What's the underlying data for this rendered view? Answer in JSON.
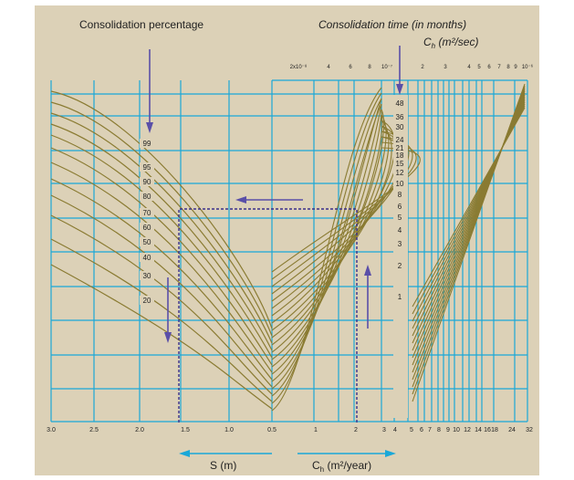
{
  "titles": {
    "consolidation_percentage": "Consolidation percentage",
    "consolidation_time": "Consolidation time (in months)",
    "ch_sec_label": "C",
    "ch_sec_sub": "h",
    "ch_sec_unit": " (m²/sec)"
  },
  "top_axis_labels": [
    "2x10⁻⁸",
    "4",
    "6",
    "8",
    "10⁻⁷",
    "2",
    "3",
    "4",
    "5",
    "6",
    "7",
    "8",
    "9",
    "10⁻⁶"
  ],
  "bottom_axis_labels": [
    "3.0",
    "2.5",
    "2.0",
    "1.5",
    "1.0",
    "0.5",
    "1",
    "2",
    "3",
    "4",
    "5",
    "6",
    "7",
    "8",
    "9",
    "10",
    "12",
    "14",
    "16",
    "18",
    "24",
    "32"
  ],
  "percentage_labels": [
    "99",
    "95",
    "90",
    "80",
    "70",
    "60",
    "50",
    "40",
    "30",
    "20"
  ],
  "time_labels": [
    "48",
    "36",
    "30",
    "24",
    "21",
    "18",
    "15",
    "12",
    "10",
    "8",
    "6",
    "5",
    "4",
    "3",
    "2",
    "1"
  ],
  "axis_names": {
    "s": "S (m)",
    "ch_year_c": "C",
    "ch_year_sub": "h",
    "ch_year_unit": " (m²/year)"
  },
  "colors": {
    "background": "#dcd1b7",
    "grid": "#1aa8d8",
    "curve": "#8a7b32",
    "arrow": "#5a4fa8",
    "dashed": "#3a2f8a"
  }
}
